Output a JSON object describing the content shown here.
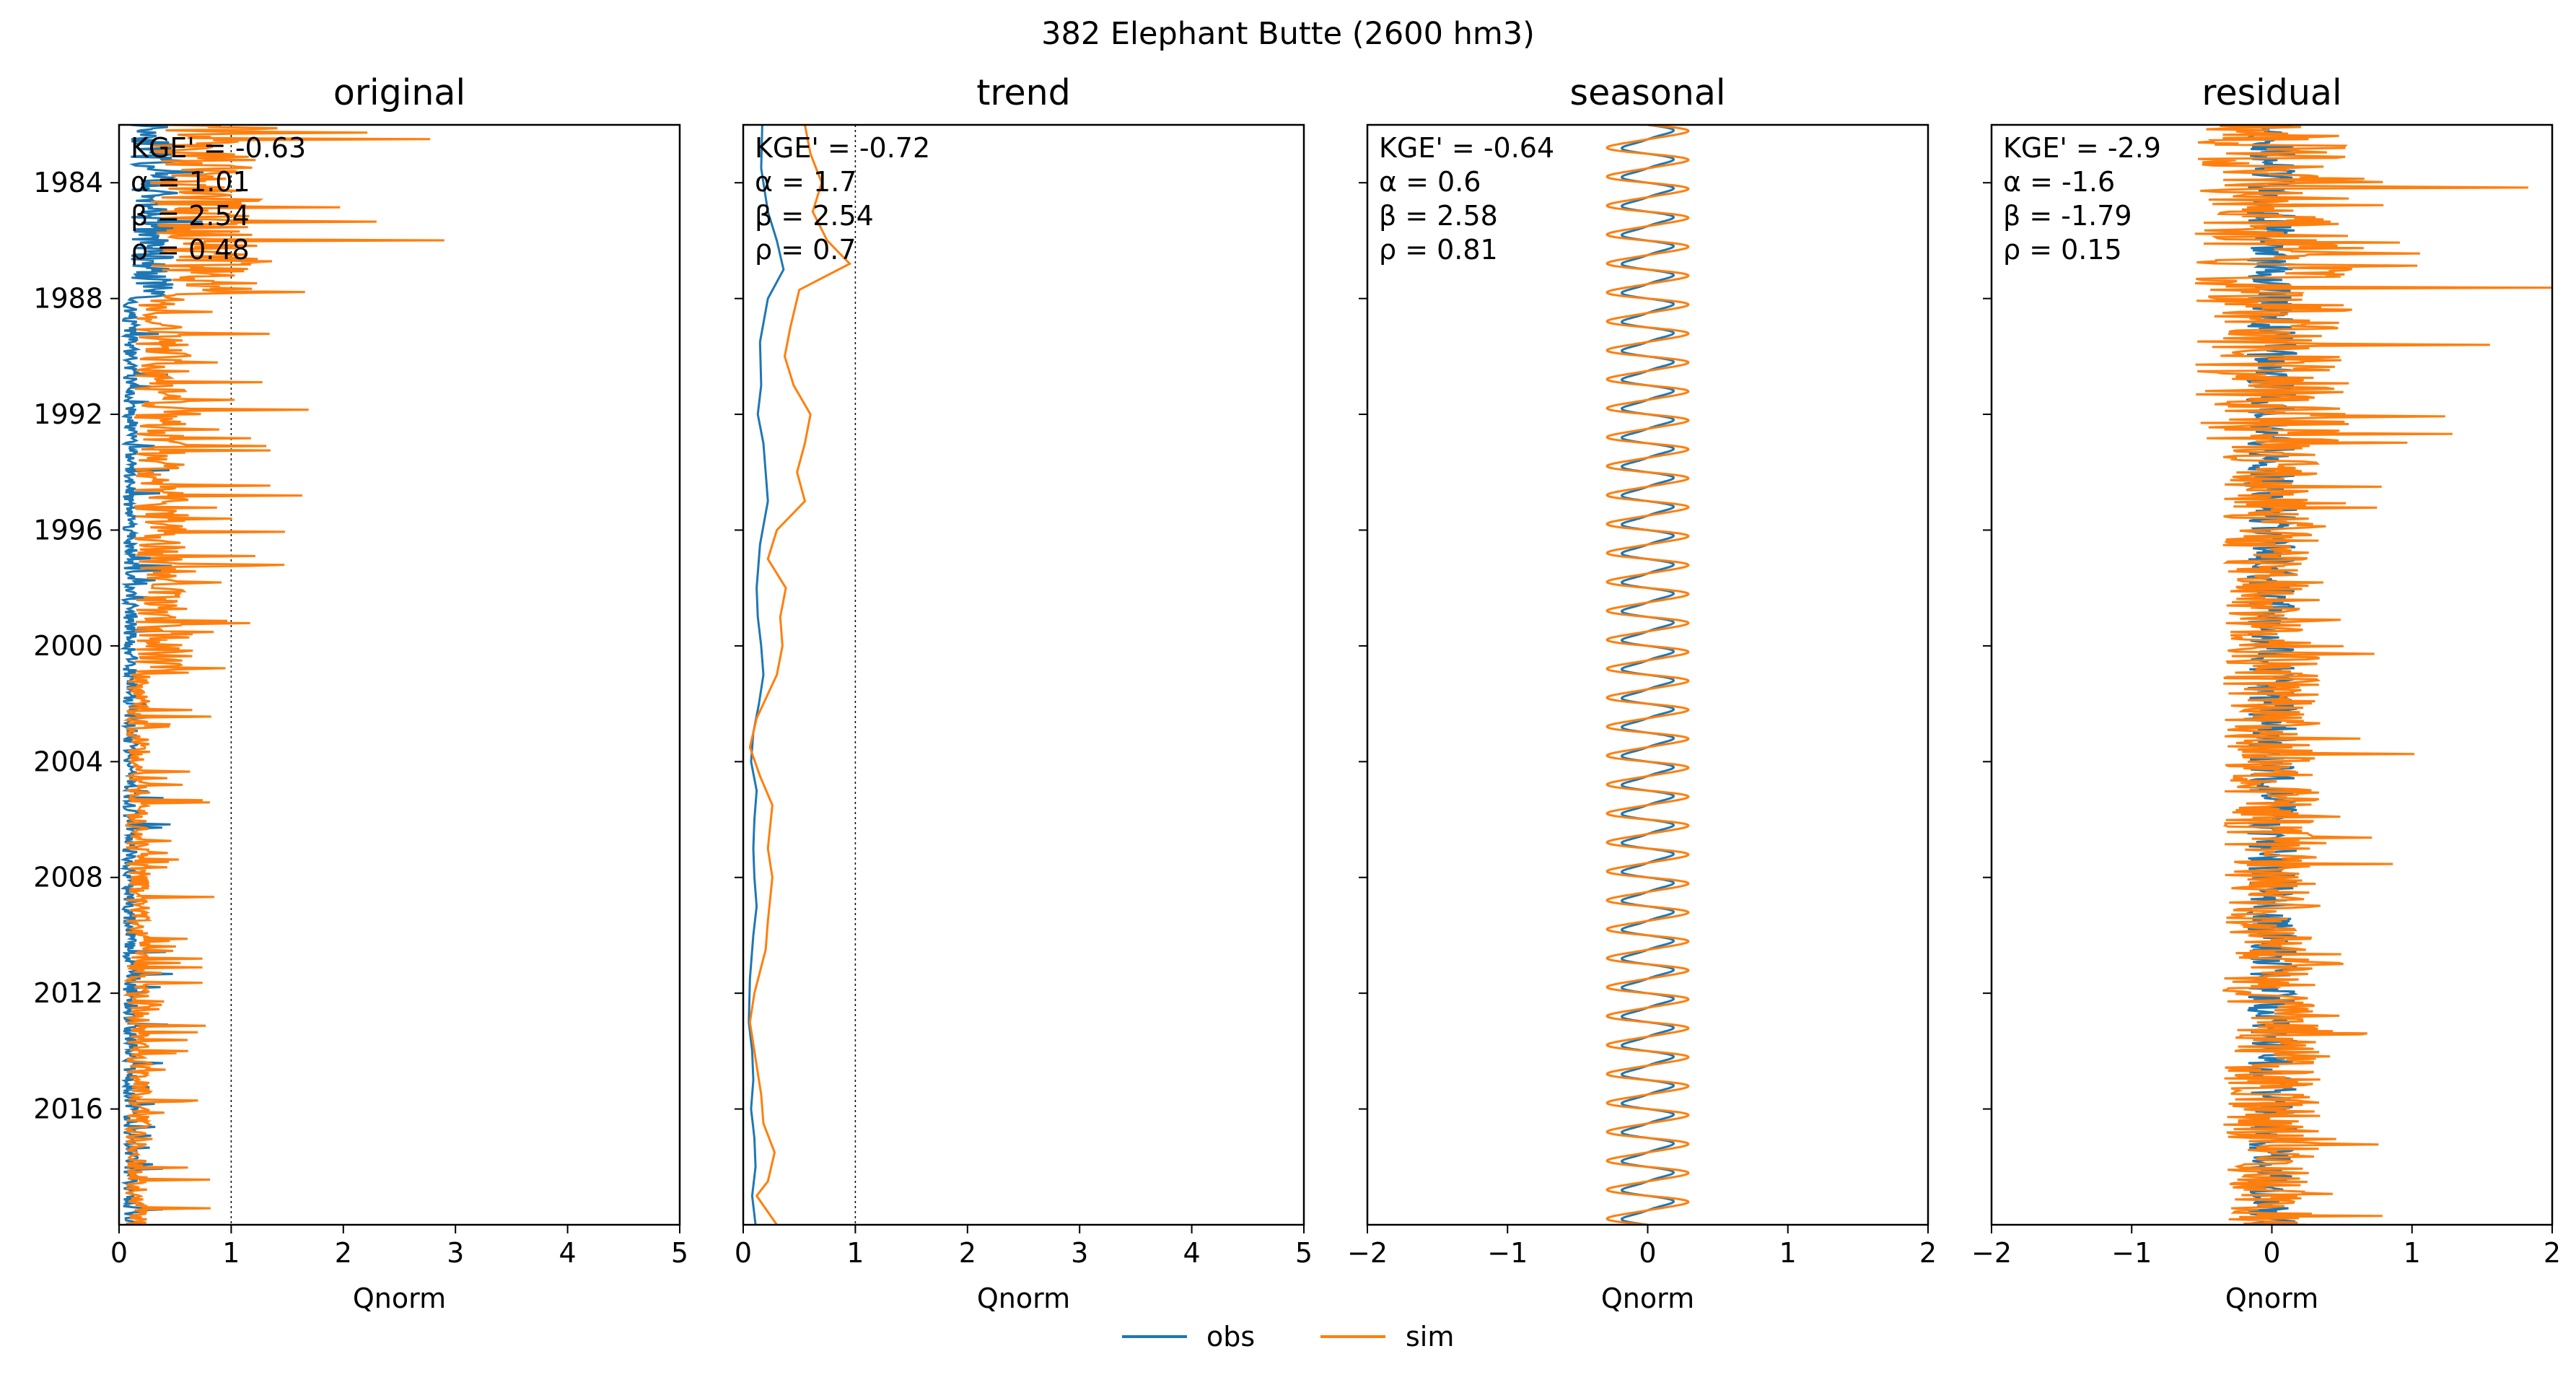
{
  "figure": {
    "suptitle": "382  Elephant Butte (2600 hm3)",
    "legend": [
      {
        "label": "obs",
        "color": "#1f77b4"
      },
      {
        "label": "sim",
        "color": "#ff7f0e"
      }
    ]
  },
  "colors": {
    "obs": "#1f77b4",
    "sim": "#ff7f0e",
    "reference_line": "#000000"
  },
  "chart_data": [
    {
      "type": "line",
      "title": "original",
      "xlabel": "Qnorm",
      "ylabel": "",
      "xlim": [
        0,
        5
      ],
      "xticks": [
        "0",
        "1",
        "2",
        "3",
        "4",
        "5"
      ],
      "ylim": [
        1982.0,
        2020.0
      ],
      "yticks": [
        "1984",
        "1988",
        "1992",
        "1996",
        "2000",
        "2004",
        "2008",
        "2012",
        "2016"
      ],
      "reference_lines_x": [
        0,
        1
      ],
      "stats": [
        "KGE' = -0.63",
        "α = 1.01",
        "β = 2.54",
        "ρ = 0.48"
      ],
      "series": [
        {
          "name": "obs",
          "color": "#1f77b4",
          "description": "weekly normalized obs discharge, mostly 0–0.5 with peaks to ~0.9 in 1983–1987"
        },
        {
          "name": "sim",
          "color": "#ff7f0e",
          "description": "weekly normalized sim discharge, peaks up to ~3.3 in mid 1980s, mostly 0–1.5 afterwards"
        }
      ]
    },
    {
      "type": "line",
      "title": "trend",
      "xlabel": "Qnorm",
      "xlim": [
        0,
        5
      ],
      "xticks": [
        "0",
        "1",
        "2",
        "3",
        "4",
        "5"
      ],
      "ylim": [
        1982.0,
        2020.0
      ],
      "reference_lines_x": [
        0,
        1
      ],
      "stats": [
        "KGE' = -0.72",
        "α = 1.7",
        "β = 2.54",
        "ρ = 0.7"
      ],
      "series": [
        {
          "name": "obs",
          "color": "#1f77b4",
          "points": [
            [
              0.17,
              1982.0
            ],
            [
              0.16,
              1983.5
            ],
            [
              0.22,
              1985.0
            ],
            [
              0.3,
              1986.0
            ],
            [
              0.36,
              1987.0
            ],
            [
              0.22,
              1988.0
            ],
            [
              0.15,
              1989.5
            ],
            [
              0.16,
              1991.0
            ],
            [
              0.13,
              1992.0
            ],
            [
              0.18,
              1993.0
            ],
            [
              0.2,
              1994.0
            ],
            [
              0.22,
              1995.0
            ],
            [
              0.15,
              1996.5
            ],
            [
              0.12,
              1998.0
            ],
            [
              0.13,
              1999.0
            ],
            [
              0.16,
              2000.0
            ],
            [
              0.18,
              2001.0
            ],
            [
              0.14,
              2002.0
            ],
            [
              0.09,
              2003.0
            ],
            [
              0.07,
              2004.0
            ],
            [
              0.12,
              2005.0
            ],
            [
              0.1,
              2006.0
            ],
            [
              0.09,
              2007.0
            ],
            [
              0.1,
              2008.0
            ],
            [
              0.12,
              2009.0
            ],
            [
              0.09,
              2010.0
            ],
            [
              0.06,
              2011.5
            ],
            [
              0.05,
              2013.0
            ],
            [
              0.08,
              2014.0
            ],
            [
              0.09,
              2015.0
            ],
            [
              0.07,
              2016.0
            ],
            [
              0.1,
              2017.0
            ],
            [
              0.11,
              2018.0
            ],
            [
              0.08,
              2019.0
            ],
            [
              0.11,
              2020.0
            ]
          ]
        },
        {
          "name": "sim",
          "color": "#ff7f0e",
          "points": [
            [
              0.55,
              1982.0
            ],
            [
              0.6,
              1983.0
            ],
            [
              0.7,
              1984.0
            ],
            [
              0.62,
              1985.0
            ],
            [
              0.75,
              1986.0
            ],
            [
              0.95,
              1986.8
            ],
            [
              0.5,
              1987.7
            ],
            [
              0.42,
              1989.0
            ],
            [
              0.37,
              1990.0
            ],
            [
              0.45,
              1991.0
            ],
            [
              0.6,
              1992.0
            ],
            [
              0.55,
              1993.0
            ],
            [
              0.48,
              1994.0
            ],
            [
              0.55,
              1995.0
            ],
            [
              0.3,
              1996.0
            ],
            [
              0.22,
              1997.0
            ],
            [
              0.38,
              1998.0
            ],
            [
              0.33,
              1999.0
            ],
            [
              0.35,
              2000.0
            ],
            [
              0.3,
              2001.0
            ],
            [
              0.12,
              2002.5
            ],
            [
              0.06,
              2003.5
            ],
            [
              0.15,
              2004.5
            ],
            [
              0.26,
              2005.5
            ],
            [
              0.22,
              2007.0
            ],
            [
              0.26,
              2008.0
            ],
            [
              0.22,
              2009.5
            ],
            [
              0.2,
              2010.5
            ],
            [
              0.1,
              2012.0
            ],
            [
              0.06,
              2013.0
            ],
            [
              0.12,
              2014.5
            ],
            [
              0.16,
              2015.5
            ],
            [
              0.18,
              2016.5
            ],
            [
              0.28,
              2017.5
            ],
            [
              0.22,
              2018.5
            ],
            [
              0.12,
              2019.0
            ],
            [
              0.3,
              2020.0
            ]
          ]
        }
      ]
    },
    {
      "type": "line",
      "title": "seasonal",
      "xlabel": "Qnorm",
      "xlim": [
        -2,
        2
      ],
      "xticks": [
        "−2",
        "−1",
        "0",
        "1",
        "2"
      ],
      "ylim": [
        1982.0,
        2020.0
      ],
      "stats": [
        "KGE' = -0.64",
        "α = 0.6",
        "β = 2.58",
        "ρ = 0.81"
      ],
      "series": [
        {
          "name": "obs",
          "color": "#1f77b4",
          "amplitude": 0.17,
          "period_years": 1
        },
        {
          "name": "sim",
          "color": "#ff7f0e",
          "amplitude": 0.28,
          "period_years": 1
        }
      ]
    },
    {
      "type": "line",
      "title": "residual",
      "xlabel": "Qnorm",
      "xlim": [
        -2,
        2
      ],
      "xticks": [
        "−2",
        "−1",
        "0",
        "1",
        "2"
      ],
      "ylim": [
        1982.0,
        2020.0
      ],
      "stats": [
        "KGE' = -2.9",
        "α = -1.6",
        "β = -1.79",
        "ρ = 0.15"
      ],
      "series": [
        {
          "name": "obs",
          "color": "#1f77b4",
          "description": "residual obs fluctuations mostly within ±0.3"
        },
        {
          "name": "sim",
          "color": "#ff7f0e",
          "description": "residual sim fluctuations mostly within ±0.6, spikes to ~2 in 1984–1993"
        }
      ]
    }
  ]
}
